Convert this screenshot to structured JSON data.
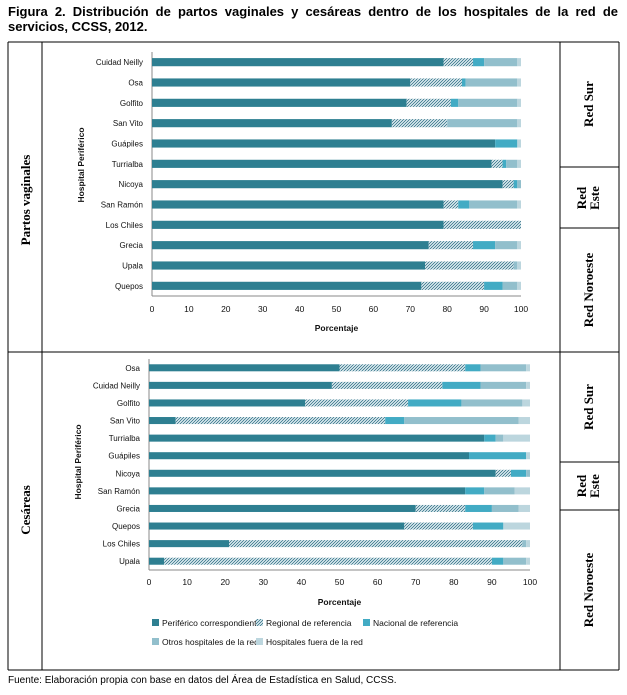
{
  "figure": {
    "title": "Figura 2. Distribución de partos vaginales y cesáreas dentro de los hospitales de la red de servicios, CCSS, 2012.",
    "source": "Fuente: Elaboración propia con base en datos del Área de Estadística en Salud, CCSS.",
    "row_labels": [
      "Partos vaginales",
      "Cesáreas"
    ],
    "network_labels": {
      "top": [
        "Red Sur",
        "Red Este",
        "Red Noroeste"
      ],
      "bottom": [
        "Red Sur",
        "Red Este",
        "Red Noroeste"
      ]
    },
    "colors": {
      "periferico": "#2e7f91",
      "regional": "#7aa5b3",
      "nacional": "#42abc4",
      "otros": "#92bfcc",
      "fuera": "#bcd6de"
    }
  },
  "chart_data": [
    {
      "type": "bar",
      "orientation": "horizontal",
      "stacked": true,
      "title": "",
      "xlabel": "Porcentaje",
      "ylabel": "Hospital Periférico",
      "xlim": [
        0,
        100
      ],
      "xticks": [
        "0",
        "10",
        "20",
        "30",
        "40",
        "50",
        "60",
        "70",
        "80",
        "90",
        "100"
      ],
      "categories": [
        "Cuidad Neilly",
        "Osa",
        "Golfito",
        "San Vito",
        "Guápiles",
        "Turrialba",
        "Nicoya",
        "San Ramón",
        "Los Chiles",
        "Grecia",
        "Upala",
        "Quepos"
      ],
      "series": [
        {
          "name": "Periférico correspondiente",
          "values": [
            79,
            70,
            69,
            65,
            93,
            92,
            95,
            79,
            79,
            75,
            74,
            73
          ]
        },
        {
          "name": "Regional de referencia",
          "values": [
            8,
            14,
            12,
            15,
            0,
            3,
            3,
            4,
            21,
            12,
            24,
            17
          ]
        },
        {
          "name": "Nacional de referencia",
          "values": [
            3,
            1,
            2,
            0,
            6,
            1,
            1,
            3,
            0,
            6,
            0,
            5
          ]
        },
        {
          "name": "Otros hospitales de la red",
          "values": [
            9,
            14,
            16,
            19,
            0,
            3,
            1,
            13,
            0,
            6,
            1,
            4
          ]
        },
        {
          "name": "Hospitales fuera de la red",
          "values": [
            1,
            1,
            1,
            1,
            1,
            1,
            0,
            1,
            0,
            1,
            1,
            1
          ]
        }
      ]
    },
    {
      "type": "bar",
      "orientation": "horizontal",
      "stacked": true,
      "title": "",
      "xlabel": "Porcentaje",
      "ylabel": "Hospital Periférico",
      "xlim": [
        0,
        100
      ],
      "xticks": [
        "0",
        "10",
        "20",
        "30",
        "40",
        "50",
        "60",
        "70",
        "80",
        "90",
        "100"
      ],
      "categories": [
        "Osa",
        "Cuidad Neilly",
        "Golfito",
        "San Vito",
        "Turrialba",
        "Guápiles",
        "Nicoya",
        "San Ramón",
        "Grecia",
        "Quepos",
        "Los Chiles",
        "Upala"
      ],
      "series": [
        {
          "name": "Periférico correspondiente",
          "values": [
            50,
            48,
            41,
            7,
            88,
            84,
            91,
            83,
            70,
            67,
            21,
            4
          ]
        },
        {
          "name": "Regional de referencia",
          "values": [
            33,
            29,
            27,
            55,
            0,
            0,
            4,
            0,
            13,
            18,
            77,
            86
          ]
        },
        {
          "name": "Nacional de referencia",
          "values": [
            4,
            10,
            14,
            5,
            3,
            15,
            4,
            5,
            7,
            8,
            0,
            3
          ]
        },
        {
          "name": "Otros hospitales de la red",
          "values": [
            12,
            12,
            16,
            30,
            2,
            0,
            1,
            8,
            7,
            0,
            1,
            6
          ]
        },
        {
          "name": "Hospitales fuera de la red",
          "values": [
            1,
            1,
            2,
            3,
            7,
            1,
            0,
            4,
            3,
            7,
            1,
            1
          ]
        }
      ]
    }
  ],
  "legend": {
    "items": [
      "Periférico correspondiente",
      "Regional de referencia",
      "Nacional de referencia",
      "Otros hospitales de la red",
      "Hospitales fuera de la red"
    ]
  }
}
